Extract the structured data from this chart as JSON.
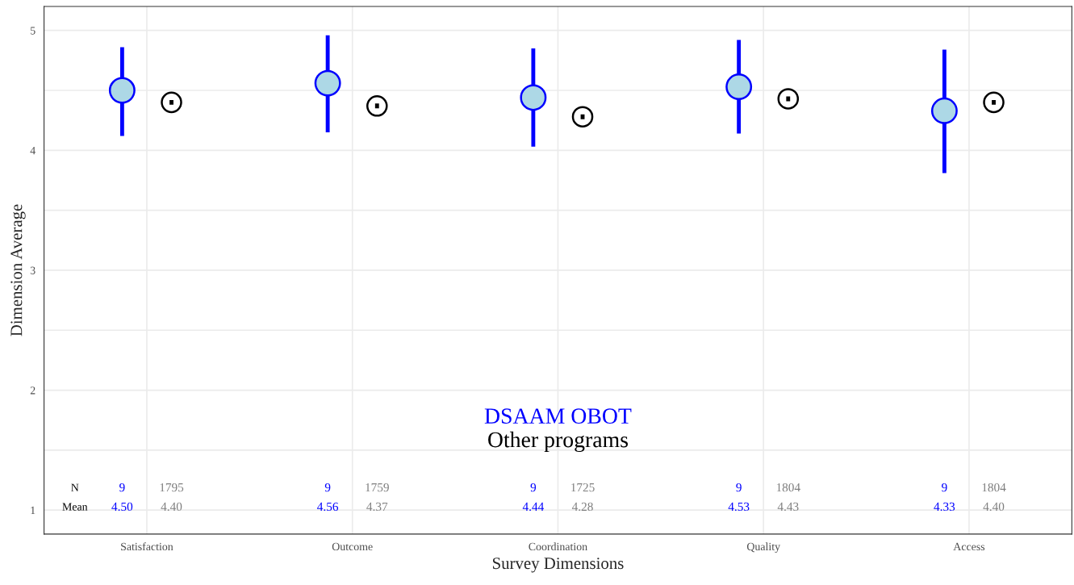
{
  "chart_data": {
    "type": "scatter",
    "xlabel": "Survey Dimensions",
    "ylabel": "Dimension Average",
    "categories": [
      "Satisfaction",
      "Outcome",
      "Coordination",
      "Quality",
      "Access"
    ],
    "series": [
      {
        "name": "DSAAM OBOT",
        "color": "#0000ff",
        "values": [
          4.5,
          4.56,
          4.44,
          4.53,
          4.33
        ],
        "errors": [
          [
            4.12,
            4.86
          ],
          [
            4.15,
            4.96
          ],
          [
            4.03,
            4.85
          ],
          [
            4.14,
            4.92
          ],
          [
            3.81,
            4.84
          ]
        ]
      },
      {
        "name": "Other programs",
        "color": "#000000",
        "values": [
          4.4,
          4.37,
          4.28,
          4.43,
          4.4
        ],
        "errors": [
          0.02,
          0.02,
          0.02,
          0.02,
          0.02
        ]
      }
    ],
    "ylim": [
      0.8,
      5.2
    ],
    "yticks": [
      1,
      2,
      3,
      4,
      5
    ],
    "grid": true,
    "legend": "bottom",
    "marker": "circle",
    "annotations": [
      "N",
      "Mean",
      "9",
      "9",
      "9",
      "9",
      "9",
      "1795",
      "1759",
      "1725",
      "1804",
      "1804",
      "4.50",
      "4.56",
      "4.44",
      "4.53",
      "4.33",
      "4.40",
      "4.37",
      "4.28",
      "4.43",
      "4.40"
    ]
  }
}
